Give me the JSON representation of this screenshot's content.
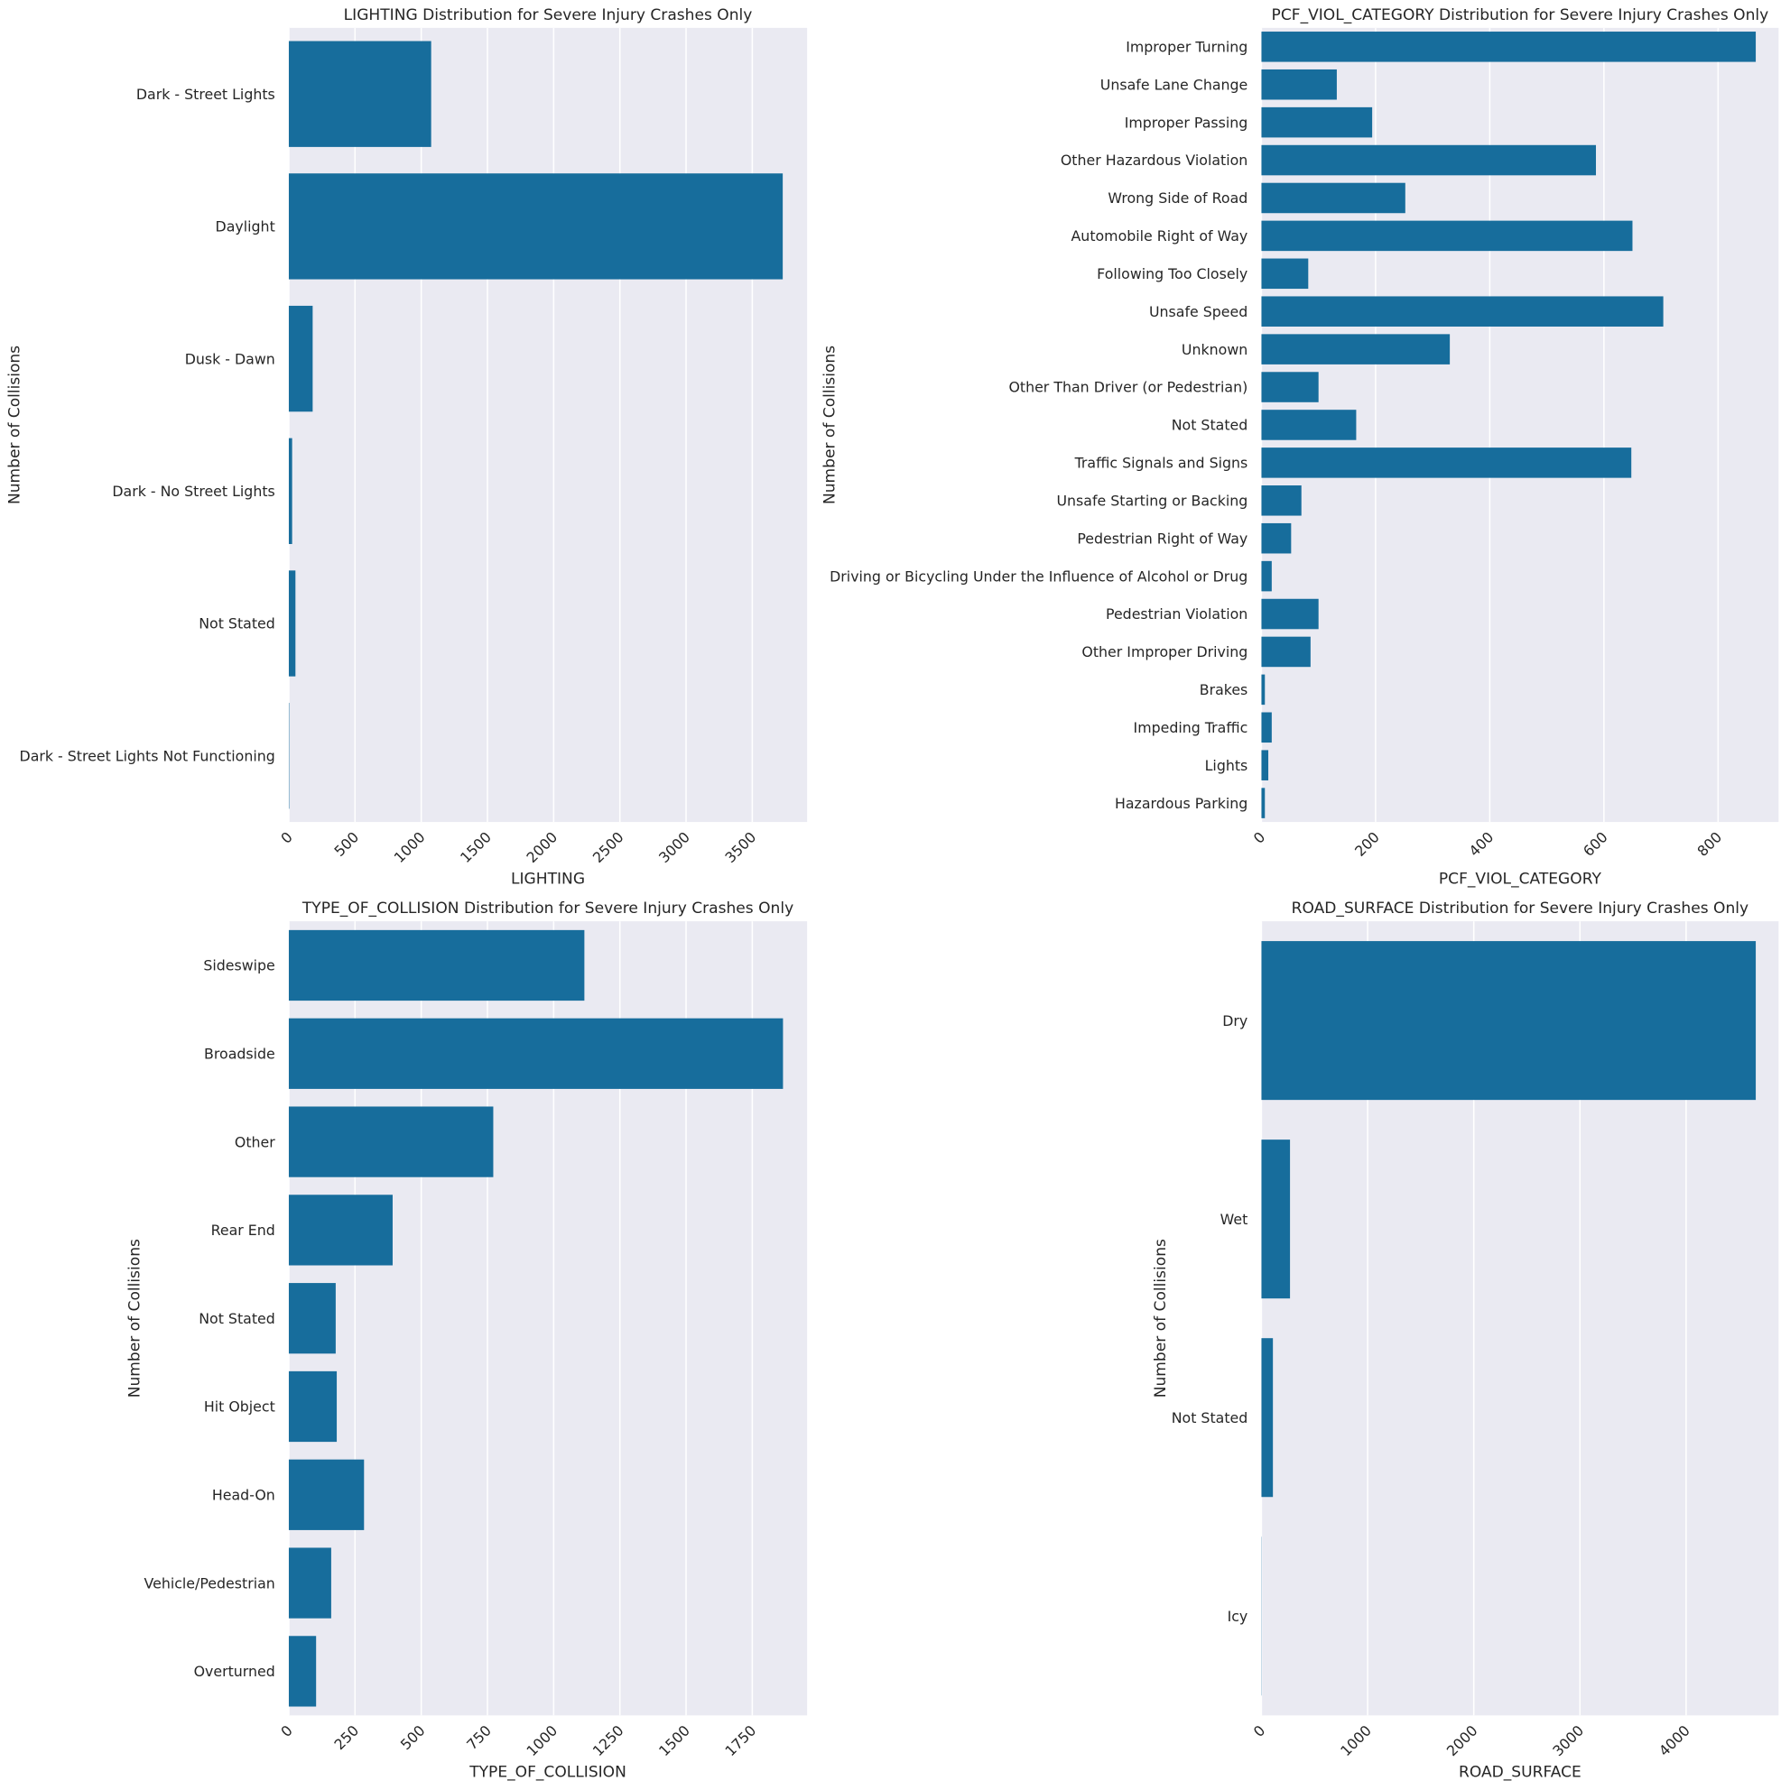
{
  "bar_color": "#176d9c",
  "plot_background": "#eaeaf2",
  "grid_color": "#ffffff",
  "chart_data": [
    {
      "type": "bar",
      "orientation": "horizontal",
      "title": "LIGHTING Distribution for Severe Injury Crashes Only",
      "xlabel": "LIGHTING",
      "ylabel": "Number of Collisions",
      "xlim": [
        0,
        3914
      ],
      "xticks": [
        "0",
        "500",
        "1000",
        "1500",
        "2000",
        "2500",
        "3000",
        "3500"
      ],
      "grid": true,
      "categories": [
        "Dark - Street Lights",
        "Daylight",
        "Dusk - Dawn",
        "Dark - No Street Lights",
        "Not Stated",
        "Dark - Street Lights Not Functioning"
      ],
      "values": [
        1075,
        3730,
        180,
        25,
        50,
        3
      ]
    },
    {
      "type": "bar",
      "orientation": "horizontal",
      "title": "PCF_VIOL_CATEGORY Distribution for Severe Injury Crashes Only",
      "xlabel": "PCF_VIOL_CATEGORY",
      "ylabel": "Number of Collisions",
      "xlim": [
        0,
        906
      ],
      "xticks": [
        "0",
        "200",
        "400",
        "600",
        "800"
      ],
      "grid": true,
      "categories": [
        "Improper Turning",
        "Unsafe Lane Change",
        "Improper Passing",
        "Other Hazardous Violation",
        "Wrong Side of Road",
        "Automobile Right of Way",
        "Following Too Closely",
        "Unsafe Speed",
        "Unknown",
        "Other Than Driver (or Pedestrian)",
        "Not Stated",
        "Traffic Signals and Signs",
        "Unsafe Starting or Backing",
        "Pedestrian Right of Way",
        "Driving or Bicycling Under the Influence of Alcohol or Drug",
        "Pedestrian Violation",
        "Other Improper Driving",
        "Brakes",
        "Impeding Traffic",
        "Lights",
        "Hazardous Parking"
      ],
      "values": [
        866,
        132,
        194,
        586,
        252,
        650,
        82,
        704,
        330,
        100,
        166,
        648,
        70,
        52,
        18,
        100,
        86,
        6,
        18,
        12,
        6
      ]
    },
    {
      "type": "bar",
      "orientation": "horizontal",
      "title": "TYPE_OF_COLLISION Distribution for Severe Injury Crashes Only",
      "xlabel": "TYPE_OF_COLLISION",
      "ylabel": "Number of Collisions",
      "xlim": [
        0,
        1957
      ],
      "xticks": [
        "0",
        "250",
        "500",
        "750",
        "1000",
        "1250",
        "1500",
        "1750"
      ],
      "grid": true,
      "categories": [
        "Sideswipe",
        "Broadside",
        "Other",
        "Rear End",
        "Not Stated",
        "Hit Object",
        "Head-On",
        "Vehicle/Pedestrian",
        "Overturned"
      ],
      "values": [
        1116,
        1866,
        772,
        392,
        177,
        181,
        284,
        160,
        103
      ]
    },
    {
      "type": "bar",
      "orientation": "horizontal",
      "title": "ROAD_SURFACE Distribution for Severe Injury Crashes Only",
      "xlabel": "ROAD_SURFACE",
      "ylabel": "Number of Collisions",
      "xlim": [
        0,
        4871
      ],
      "xticks": [
        "0",
        "1000",
        "2000",
        "3000",
        "4000"
      ],
      "grid": true,
      "categories": [
        "Dry",
        "Wet",
        "Not Stated",
        "Icy"
      ],
      "values": [
        4656,
        269,
        108,
        2
      ]
    }
  ]
}
